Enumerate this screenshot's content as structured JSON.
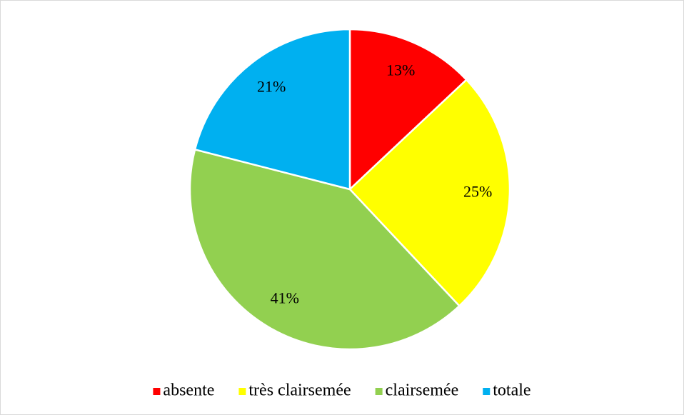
{
  "chart_data": {
    "type": "pie",
    "categories": [
      "absente",
      "très clairsemée",
      "clairsemée",
      "totale"
    ],
    "values": [
      13,
      25,
      41,
      21
    ],
    "value_labels": [
      "13%",
      "25%",
      "41%",
      "21%"
    ],
    "colors": [
      "#ff0000",
      "#ffff00",
      "#92d050",
      "#00b0f0"
    ],
    "legend": "bottom"
  }
}
